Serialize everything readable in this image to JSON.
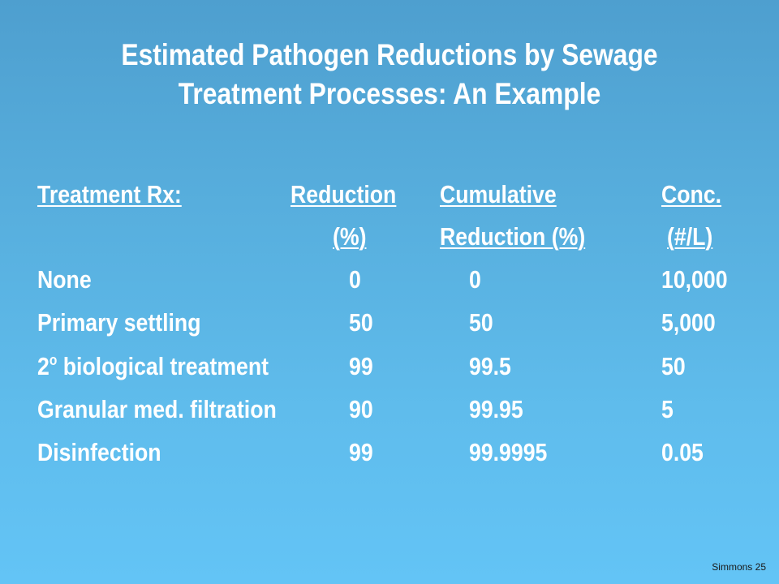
{
  "title": {
    "line1": "Estimated Pathogen Reductions by Sewage",
    "line2": "Treatment Processes:  An Example"
  },
  "table": {
    "headers": {
      "col1": "Treatment Rx:",
      "col2_line1": "Reduction",
      "col2_line2": "(%)",
      "col3_line1": "Cumulative",
      "col3_line2": "Reduction (%)",
      "col4_line1": "Conc.",
      "col4_line2": "(#/L)"
    },
    "rows": [
      {
        "treatment": "None",
        "reduction": "0",
        "cumulative": "0",
        "conc": "10,000"
      },
      {
        "treatment": "Primary settling",
        "reduction": "50",
        "cumulative": "50",
        "conc": "5,000"
      },
      {
        "treatment_prefix": "2",
        "treatment_sup": "o",
        "treatment": " biological treatment",
        "reduction": "99",
        "cumulative": "99.5",
        "conc": "50"
      },
      {
        "treatment": "Granular med. filtration",
        "reduction": "90",
        "cumulative": "99.95",
        "conc": "5"
      },
      {
        "treatment": "Disinfection",
        "reduction": "99",
        "cumulative": "99.9995",
        "conc": "0.05"
      }
    ]
  },
  "footer": "Simmons 25"
}
